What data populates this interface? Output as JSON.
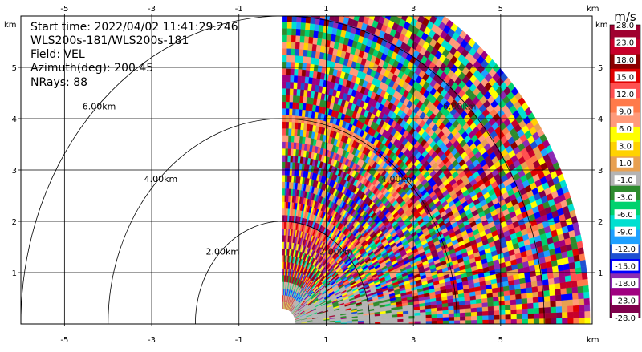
{
  "info": {
    "start_time": "Start time: 2022/04/02 11:41:29.246",
    "instrument": "WLS200s-181/WLS200s-181",
    "field": "Field: VEL",
    "azimuth": "Azimuth(deg): 200.45",
    "nrays": "NRays: 88"
  },
  "chart_data": {
    "type": "heatmap",
    "subtype": "rhi-scan",
    "field": "VEL",
    "azimuth_deg": 200.45,
    "nrays": 88,
    "x_unit": "km",
    "y_unit": "km",
    "xlim": [
      -6,
      7.1
    ],
    "ylim": [
      0,
      6
    ],
    "x_ticks_top": [
      "-5",
      "-3",
      "-1",
      "1",
      "3",
      "5"
    ],
    "x_ticks_bottom": [
      "-5",
      "-3",
      "-1",
      "1",
      "3",
      "5"
    ],
    "y_ticks_left": [
      "1",
      "2",
      "3",
      "4",
      "5"
    ],
    "y_ticks_right": [
      "1",
      "2",
      "3",
      "4",
      "5"
    ],
    "axis_unit_label": "km",
    "range_rings_km": [
      2,
      4,
      6
    ],
    "range_ring_labels": [
      "2.00km",
      "4.00km",
      "6.00km"
    ],
    "data_extent": {
      "x_min_km": -0.8,
      "max_range_km": 7.05,
      "elev_min_deg": 0,
      "elev_max_deg": 90
    },
    "colorbar": {
      "unit": "m/s",
      "labels": [
        "28.0",
        "23.0",
        "18.0",
        "15.0",
        "12.0",
        "9.0",
        "6.0",
        "3.0",
        "1.0",
        "-1.0",
        "-3.0",
        "-6.0",
        "-9.0",
        "-12.0",
        "-15.0",
        "-18.0",
        "-23.0",
        "-28.0"
      ],
      "colors": [
        "#a00030",
        "#c8002a",
        "#8b0000",
        "#e00000",
        "#ff5050",
        "#ff7a4a",
        "#ff9a7a",
        "#ffff00",
        "#ffd200",
        "#e8a050",
        "#b4b4b4",
        "#2e8b2e",
        "#00d26e",
        "#00e0d0",
        "#1ea0ff",
        "#1e50d2",
        "#0000ff",
        "#8c2ab4",
        "#a00080",
        "#80004c"
      ]
    }
  }
}
